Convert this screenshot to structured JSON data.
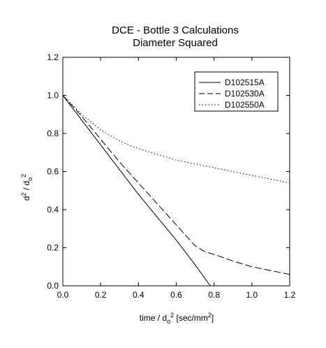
{
  "chart_data": {
    "type": "line",
    "title": "DCE - Bottle 3 Calculations",
    "subtitle": "Diameter Squared",
    "xlabel": "time / d0² [sec/mm²]",
    "ylabel": "d² / d0²",
    "xlim": [
      0.0,
      1.2
    ],
    "ylim": [
      0.0,
      1.2
    ],
    "xticks": [
      "0.0",
      "0.2",
      "0.4",
      "0.6",
      "0.8",
      "1.0",
      "1.2"
    ],
    "yticks": [
      "0.0",
      "0.2",
      "0.4",
      "0.6",
      "0.8",
      "1.0",
      "1.2"
    ],
    "grid": false,
    "legend_position": "top-right",
    "series": [
      {
        "name": "D102515A",
        "style": "solid",
        "x": [
          0.0,
          0.1,
          0.2,
          0.3,
          0.4,
          0.5,
          0.6,
          0.7,
          0.78
        ],
        "y": [
          1.0,
          0.87,
          0.74,
          0.61,
          0.48,
          0.36,
          0.24,
          0.11,
          0.0
        ]
      },
      {
        "name": "D102530A",
        "style": "dashed",
        "x": [
          0.0,
          0.1,
          0.2,
          0.3,
          0.4,
          0.5,
          0.6,
          0.7,
          0.75,
          0.8,
          0.9,
          1.0,
          1.1,
          1.2
        ],
        "y": [
          1.0,
          0.89,
          0.77,
          0.65,
          0.54,
          0.43,
          0.32,
          0.21,
          0.18,
          0.165,
          0.13,
          0.1,
          0.08,
          0.06
        ]
      },
      {
        "name": "D102550A",
        "style": "dotted",
        "x": [
          0.0,
          0.1,
          0.2,
          0.3,
          0.4,
          0.5,
          0.6,
          0.7,
          0.8,
          0.9,
          1.0,
          1.1,
          1.2
        ],
        "y": [
          1.0,
          0.9,
          0.82,
          0.76,
          0.72,
          0.69,
          0.66,
          0.64,
          0.62,
          0.6,
          0.58,
          0.56,
          0.54
        ]
      }
    ]
  }
}
